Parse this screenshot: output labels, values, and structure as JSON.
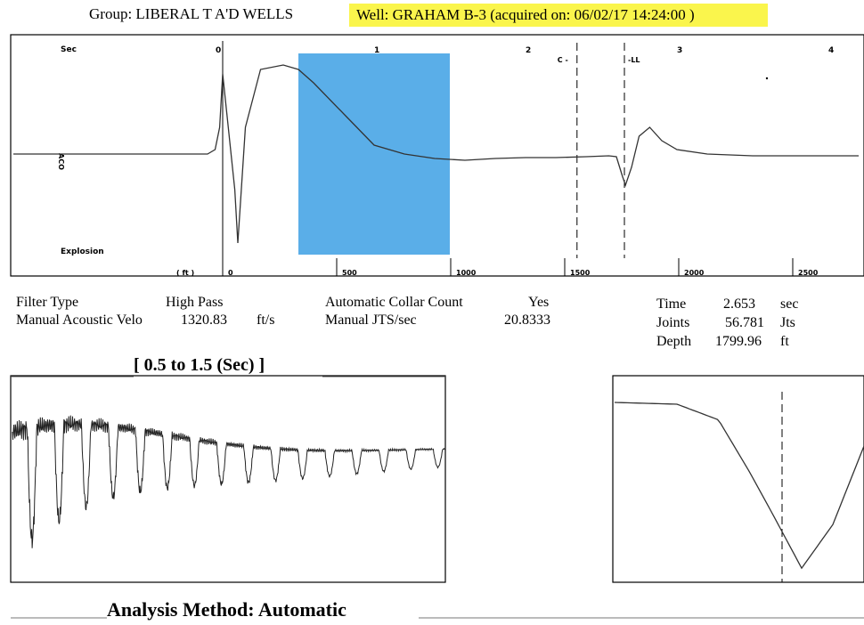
{
  "header": {
    "group_label": "Group: LIBERAL T A'D WELLS",
    "well_label": "Well: GRAHAM B-3 (acquired on: 06/02/17 14:24:00 )",
    "highlight_color": "#faf54c"
  },
  "main_plot": {
    "sec_unit_label": "Sec",
    "ft_unit_label": "( ft )",
    "explosion_label": "Explosion",
    "axis_side_label": "ACO",
    "marker_collar_label": "C",
    "marker_ll_label": "LL",
    "selection_color": "#5aaee8"
  },
  "chart_data": [
    {
      "type": "line",
      "title": "",
      "top_axis": {
        "unit": "Sec",
        "ticks": [
          0,
          1,
          2,
          3,
          4
        ]
      },
      "bottom_axis": {
        "unit": "ft",
        "ticks": [
          0,
          500,
          1000,
          1500,
          2000,
          2500
        ]
      },
      "selection_window_sec": [
        0.5,
        1.5
      ],
      "markers": [
        {
          "label": "C",
          "time_sec": 2.34
        },
        {
          "label": "LL",
          "time_sec": 2.653
        }
      ],
      "series": [
        {
          "x": [
            -1.45,
            -0.1,
            -0.05,
            -0.02,
            0.0,
            0.08,
            0.1,
            0.15,
            0.25,
            0.4,
            0.5,
            0.6,
            0.8,
            1.0,
            1.2,
            1.4,
            1.6,
            1.8,
            2.0,
            2.2,
            2.4,
            2.55,
            2.6,
            2.64,
            2.66,
            2.7,
            2.75,
            2.82,
            2.9,
            3.0,
            3.2,
            3.5,
            4.2
          ],
          "y": [
            0.0,
            0.0,
            0.05,
            0.3,
            0.9,
            -0.4,
            -1.0,
            0.3,
            0.95,
            1.0,
            0.95,
            0.8,
            0.45,
            0.1,
            0.0,
            -0.05,
            -0.07,
            -0.05,
            -0.04,
            -0.04,
            -0.03,
            -0.02,
            -0.03,
            -0.25,
            -0.35,
            -0.15,
            0.2,
            0.3,
            0.15,
            0.05,
            0.0,
            -0.02,
            -0.02
          ]
        }
      ]
    },
    {
      "type": "line",
      "title": "[ 0.5  to  1.5 (Sec) ]",
      "x_range_sec": [
        0.5,
        1.5
      ],
      "series": [
        {
          "x": [
            0.5,
            0.54,
            0.575,
            0.61,
            0.64,
            0.675,
            0.705,
            0.735,
            0.77,
            0.8,
            0.83,
            0.865,
            0.895,
            0.93,
            0.96,
            0.99,
            1.025,
            1.055,
            1.09,
            1.12,
            1.155,
            1.185,
            1.215,
            1.25,
            1.28,
            1.315,
            1.345,
            1.38,
            1.41,
            1.445,
            1.475,
            1.5
          ],
          "y": [
            0.7,
            -0.9,
            -0.85,
            -0.8,
            -0.75,
            -0.7,
            -0.62,
            -0.55,
            -0.48,
            -0.42,
            -0.35,
            -0.3,
            -0.25,
            -0.2,
            -0.16,
            -0.12,
            -0.09,
            -0.07,
            -0.05,
            -0.04,
            -0.03,
            -0.02,
            -0.02,
            -0.01,
            -0.01,
            -0.01,
            -0.005,
            -0.005,
            0.0,
            0.0,
            0.0,
            0.0
          ]
        }
      ]
    },
    {
      "type": "line",
      "title": "",
      "markers": [
        {
          "label": "LL",
          "time_sec": 2.653
        }
      ],
      "series": [
        {
          "x": [
            2.5,
            2.56,
            2.6,
            2.63,
            2.653,
            2.68,
            2.71,
            2.74
          ],
          "y": [
            1.0,
            0.98,
            0.8,
            0.2,
            -0.3,
            -0.9,
            -0.4,
            0.5
          ]
        }
      ]
    }
  ],
  "parameters": {
    "filter_type_label": "Filter Type",
    "filter_type_value": "High Pass",
    "manual_acoustic_velo_label": "Manual Acoustic Velo",
    "manual_acoustic_velo_value": "1320.83",
    "manual_acoustic_velo_unit": "ft/s",
    "auto_collar_count_label": "Automatic Collar Count",
    "auto_collar_count_value": "Yes",
    "manual_jts_label": "Manual JTS/sec",
    "manual_jts_value": "20.8333",
    "time_label": "Time",
    "time_value": "2.653",
    "time_unit": "sec",
    "joints_label": "Joints",
    "joints_value": "56.781",
    "joints_unit": "Jts",
    "depth_label": "Depth",
    "depth_value": "1799.96",
    "depth_unit": "ft"
  },
  "footer": {
    "window_title": "[ 0.5  to  1.5 (Sec) ]",
    "analysis_method_label": "Analysis Method:   Automatic"
  }
}
